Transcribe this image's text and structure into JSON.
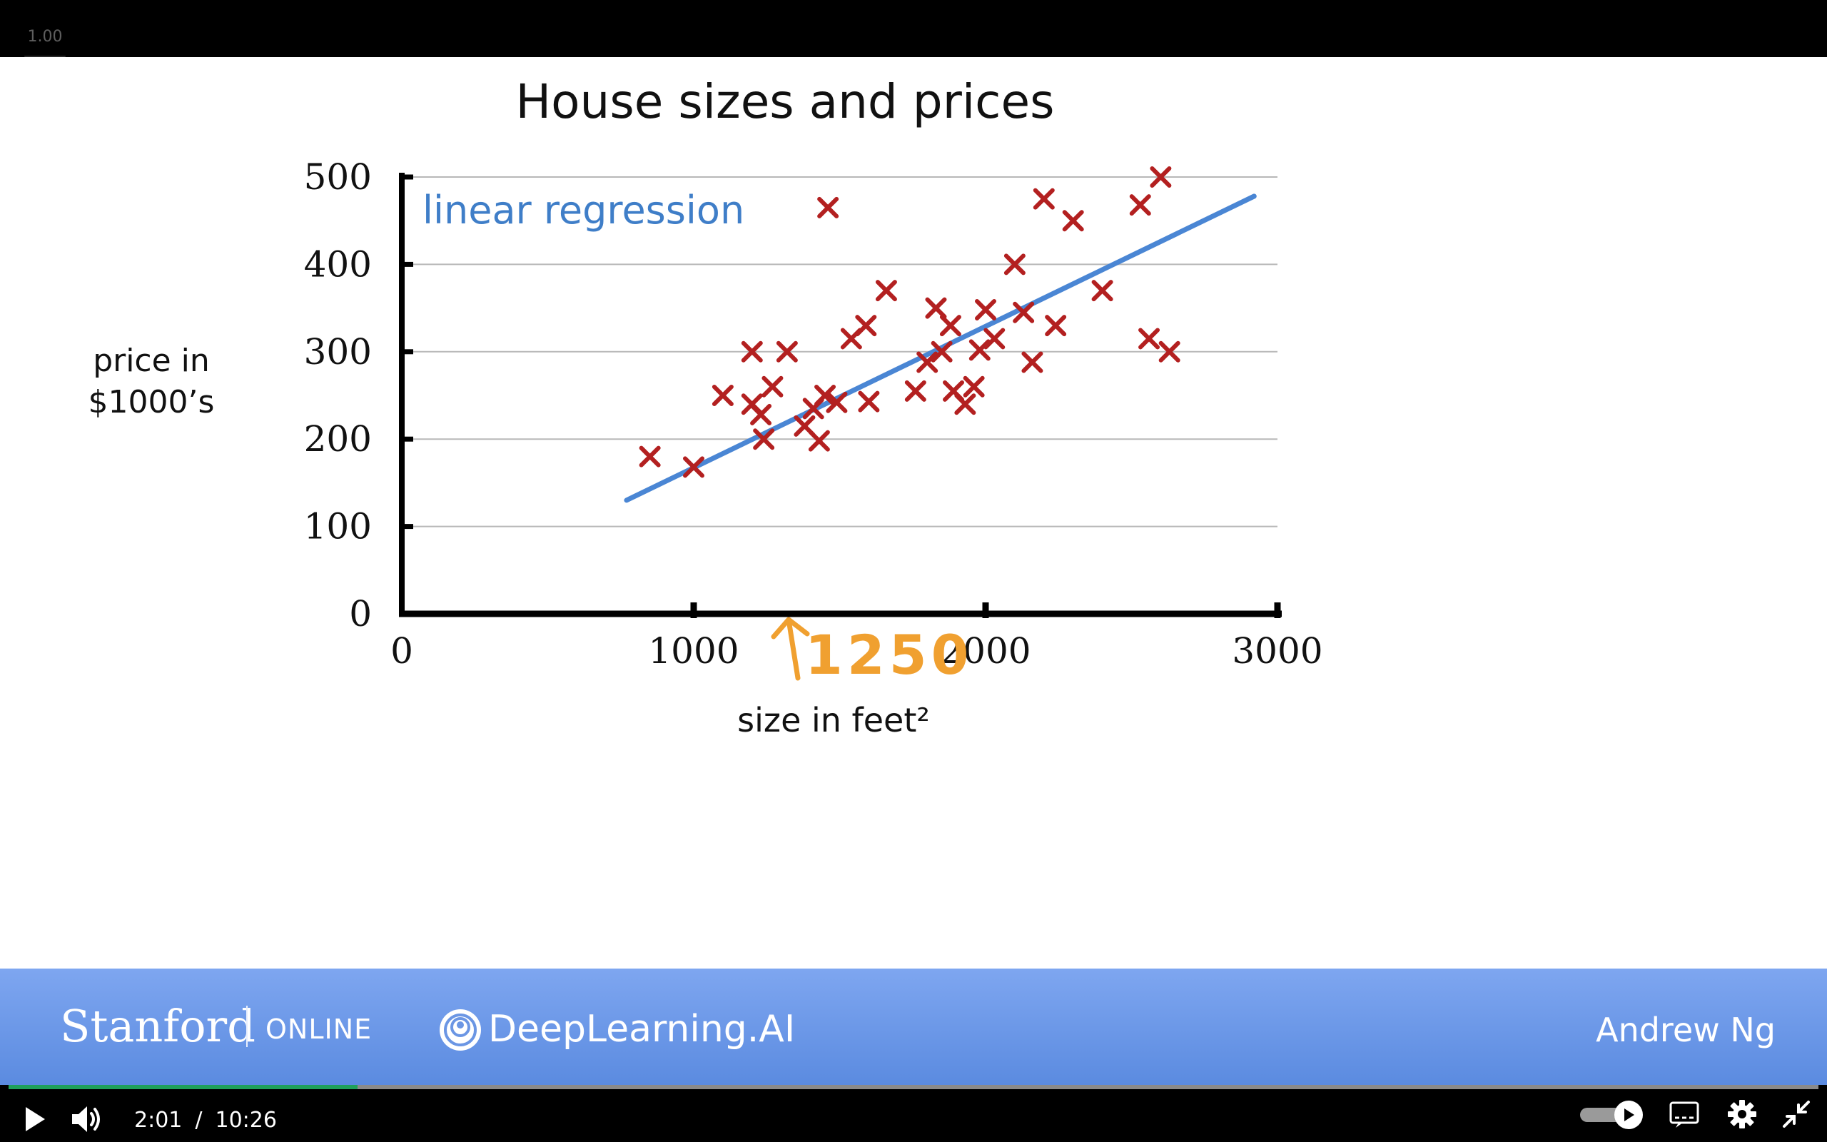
{
  "player": {
    "playback_speed": "1.00",
    "time_current": "2:01",
    "time_separator": "/",
    "time_total": "10:26",
    "progress_fraction": 0.193,
    "icons": [
      "play-icon",
      "volume-icon",
      "quality-toggle-icon",
      "captions-icon",
      "settings-gear-icon",
      "exit-fullscreen-icon"
    ]
  },
  "footer": {
    "stanford": "Stanford",
    "online": "ONLINE",
    "deeplearning": "DeepLearning.AI",
    "presenter": "Andrew Ng"
  },
  "slide": {
    "ylabel_line1": "price in",
    "ylabel_line2": "$1000’s",
    "annotation": "1250",
    "annotation_color": "#f0a030",
    "regression_label": "linear regression",
    "regression_color": "#4a86d4"
  },
  "chart_data": {
    "type": "scatter",
    "title": "House sizes and prices",
    "xlabel": "size in feet²",
    "ylabel": "price in $1000’s",
    "xlim": [
      0,
      3000
    ],
    "ylim": [
      0,
      500
    ],
    "xticks": [
      "0",
      "1000",
      "2000",
      "3000"
    ],
    "yticks": [
      "0",
      "100",
      "200",
      "300",
      "400",
      "500"
    ],
    "grid": "horizontal",
    "marker": "x",
    "marker_color": "#b32020",
    "points": [
      [
        850,
        180
      ],
      [
        1000,
        168
      ],
      [
        1100,
        250
      ],
      [
        1200,
        300
      ],
      [
        1200,
        240
      ],
      [
        1230,
        228
      ],
      [
        1240,
        200
      ],
      [
        1270,
        260
      ],
      [
        1320,
        300
      ],
      [
        1380,
        215
      ],
      [
        1410,
        235
      ],
      [
        1430,
        198
      ],
      [
        1450,
        250
      ],
      [
        1460,
        465
      ],
      [
        1490,
        242
      ],
      [
        1540,
        315
      ],
      [
        1590,
        330
      ],
      [
        1600,
        243
      ],
      [
        1660,
        370
      ],
      [
        1760,
        255
      ],
      [
        1800,
        288
      ],
      [
        1830,
        350
      ],
      [
        1850,
        300
      ],
      [
        1880,
        330
      ],
      [
        1890,
        255
      ],
      [
        1930,
        240
      ],
      [
        1960,
        260
      ],
      [
        1980,
        302
      ],
      [
        2000,
        348
      ],
      [
        2030,
        315
      ],
      [
        2100,
        400
      ],
      [
        2130,
        345
      ],
      [
        2160,
        288
      ],
      [
        2200,
        475
      ],
      [
        2240,
        330
      ],
      [
        2300,
        450
      ],
      [
        2400,
        370
      ],
      [
        2530,
        468
      ],
      [
        2560,
        315
      ],
      [
        2600,
        500
      ],
      [
        2630,
        300
      ]
    ],
    "regression_line": [
      [
        770,
        130
      ],
      [
        2920,
        478
      ]
    ]
  }
}
